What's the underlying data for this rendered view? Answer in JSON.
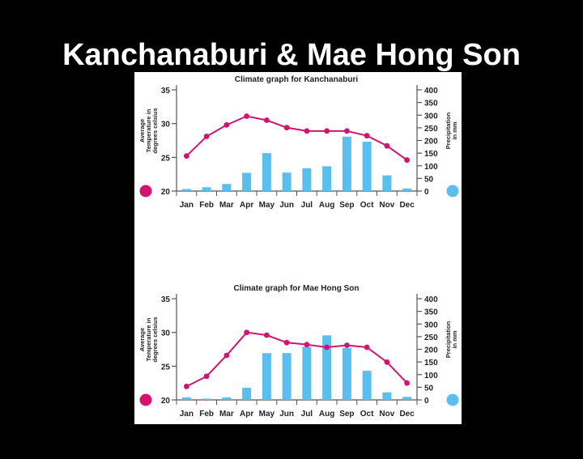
{
  "slide": {
    "title": "Kanchanaburi & Mae Hong Son"
  },
  "colors": {
    "temperature": "#d4136f",
    "precipitation": "#5bbfee",
    "background": "#000000",
    "panel": "#ffffff"
  },
  "chart_data": [
    {
      "type": "bar",
      "title": "Climate graph for Kanchanaburi",
      "ylabel": [
        "Average",
        "Temperature in",
        "degrees celsius"
      ],
      "y2label": [
        "Precipitation",
        "in mm"
      ],
      "categories": [
        "Jan",
        "Feb",
        "Mar",
        "Apr",
        "May",
        "Jun",
        "Jul",
        "Aug",
        "Sep",
        "Oct",
        "Nov",
        "Dec"
      ],
      "ylim": [
        20,
        35
      ],
      "y_ticks": [
        "20",
        "25",
        "30",
        "35"
      ],
      "y2lim": [
        0,
        400
      ],
      "y2_ticks": [
        "0",
        "50",
        "100",
        "150",
        "200",
        "250",
        "300",
        "350",
        "400"
      ],
      "series": [
        {
          "type": "bar",
          "axis": "right",
          "values": [
            8,
            15,
            28,
            72,
            150,
            73,
            90,
            98,
            215,
            195,
            62,
            10
          ]
        },
        {
          "type": "line",
          "axis": "left",
          "values": [
            25.2,
            28.1,
            29.8,
            31.1,
            30.5,
            29.4,
            28.9,
            28.9,
            28.9,
            28.2,
            26.7,
            24.6
          ]
        }
      ]
    },
    {
      "type": "bar",
      "title": "Climate graph for Mae Hong Son",
      "ylabel": [
        "Average",
        "Temperature in",
        "degrees celsius"
      ],
      "y2label": [
        "Precipitation",
        "in mm"
      ],
      "categories": [
        "Jan",
        "Feb",
        "Mar",
        "Apr",
        "May",
        "Jun",
        "Jul",
        "Aug",
        "Sep",
        "Oct",
        "Nov",
        "Dec"
      ],
      "ylim": [
        20,
        35
      ],
      "y_ticks": [
        "20",
        "25",
        "30",
        "35"
      ],
      "y2lim": [
        0,
        400
      ],
      "y2_ticks": [
        "0",
        "50",
        "100",
        "150",
        "200",
        "250",
        "300",
        "350",
        "400"
      ],
      "series": [
        {
          "type": "bar",
          "axis": "right",
          "values": [
            10,
            5,
            10,
            48,
            185,
            185,
            210,
            255,
            205,
            115,
            30,
            12
          ]
        },
        {
          "type": "line",
          "axis": "left",
          "values": [
            22.0,
            23.5,
            26.6,
            30.0,
            29.6,
            28.5,
            28.2,
            27.8,
            28.1,
            27.8,
            25.6,
            22.5
          ]
        }
      ]
    }
  ]
}
